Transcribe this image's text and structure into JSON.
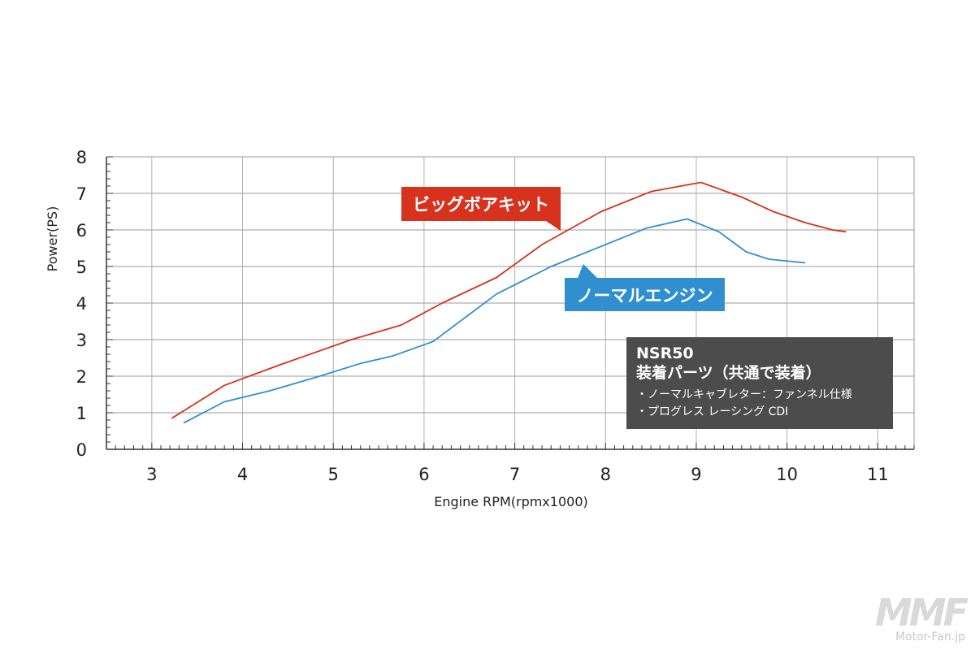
{
  "chart_data": {
    "type": "line",
    "title": "",
    "xlabel": "Engine RPM(rpmx1000)",
    "ylabel": "Power(PS)",
    "xlim": [
      2.5,
      11.4
    ],
    "ylim": [
      0,
      8
    ],
    "x_ticks": [
      3,
      4,
      5,
      6,
      7,
      8,
      9,
      10,
      11
    ],
    "y_ticks": [
      0,
      1,
      2,
      3,
      4,
      5,
      6,
      7,
      8
    ],
    "grid": true,
    "series": [
      {
        "name": "ビッグボアキット",
        "color": "#d7321e",
        "points": [
          [
            3.22,
            0.85
          ],
          [
            3.8,
            1.75
          ],
          [
            4.4,
            2.3
          ],
          [
            5.2,
            3.0
          ],
          [
            5.75,
            3.4
          ],
          [
            6.2,
            4.0
          ],
          [
            6.8,
            4.7
          ],
          [
            7.3,
            5.6
          ],
          [
            7.95,
            6.5
          ],
          [
            8.5,
            7.05
          ],
          [
            9.05,
            7.3
          ],
          [
            9.5,
            6.9
          ],
          [
            9.85,
            6.5
          ],
          [
            10.2,
            6.2
          ],
          [
            10.5,
            6.0
          ],
          [
            10.65,
            5.95
          ]
        ]
      },
      {
        "name": "ノーマルエンジン",
        "color": "#2f8fcf",
        "points": [
          [
            3.35,
            0.72
          ],
          [
            3.8,
            1.3
          ],
          [
            4.3,
            1.6
          ],
          [
            4.85,
            2.0
          ],
          [
            5.3,
            2.35
          ],
          [
            5.65,
            2.55
          ],
          [
            6.1,
            2.95
          ],
          [
            6.8,
            4.25
          ],
          [
            7.4,
            5.0
          ],
          [
            7.95,
            5.55
          ],
          [
            8.45,
            6.05
          ],
          [
            8.9,
            6.3
          ],
          [
            9.25,
            5.95
          ],
          [
            9.55,
            5.4
          ],
          [
            9.8,
            5.2
          ],
          [
            10.2,
            5.1
          ]
        ]
      }
    ],
    "annotations": {
      "red_label": "ビッグボアキット",
      "blue_label": "ノーマルエンジン",
      "info_title": "NSR50",
      "info_subtitle": "装着パーツ（共通で装着）",
      "info_items": [
        "ノーマルキャブレター：ファンネル仕様",
        "プログレス レーシング CDI"
      ]
    }
  },
  "watermark": {
    "text": "Motor-Fan.jp"
  }
}
